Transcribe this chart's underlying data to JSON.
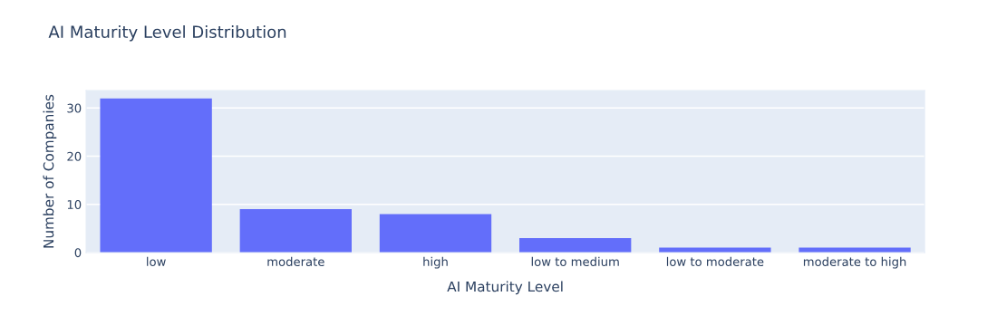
{
  "chart_data": {
    "type": "bar",
    "title": "AI Maturity Level Distribution",
    "xlabel": "AI Maturity Level",
    "ylabel": "Number of Companies",
    "categories": [
      "low",
      "moderate",
      "high",
      "low to medium",
      "low to moderate",
      "moderate to high"
    ],
    "values": [
      32,
      9,
      8,
      3,
      1,
      1
    ],
    "color": "#636efa",
    "ylim": [
      0,
      33.6
    ],
    "yticks": [
      0,
      10,
      20,
      30
    ],
    "grid": "y",
    "legend": false
  }
}
